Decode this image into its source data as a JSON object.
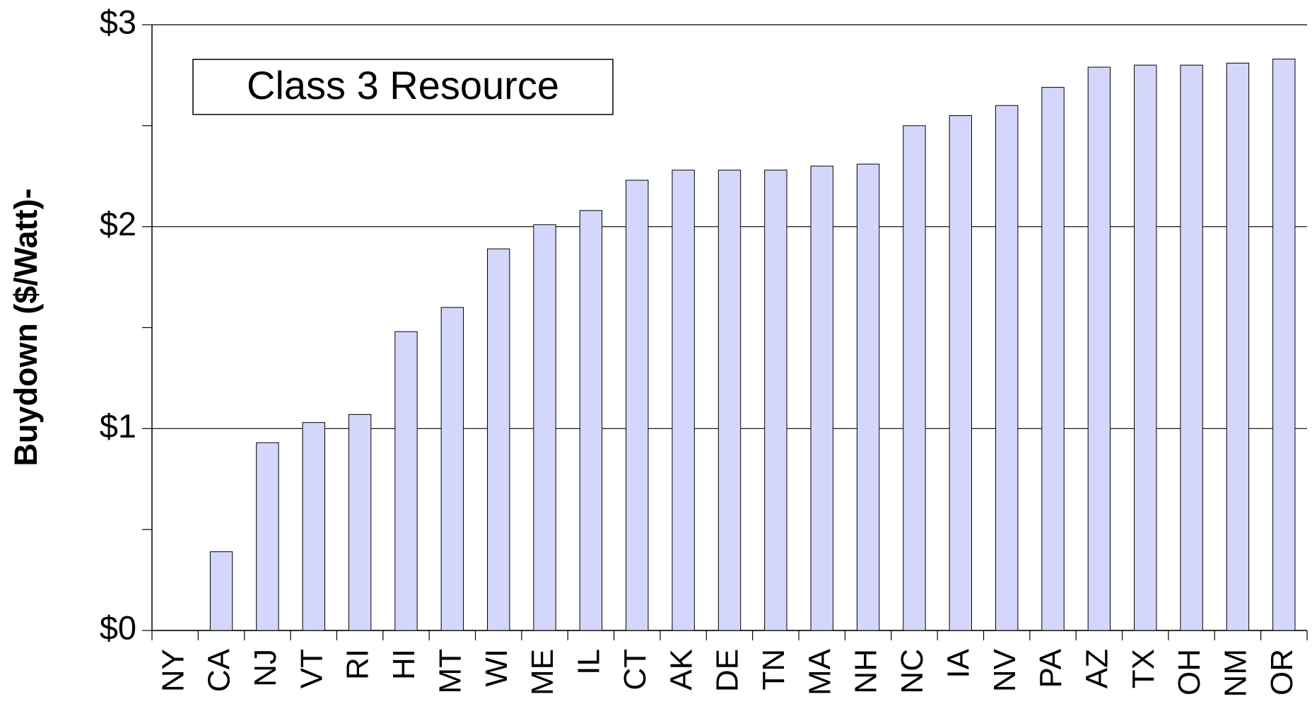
{
  "chart_data": {
    "type": "bar",
    "annotation": "Class 3 Resource",
    "y_label": "Buydown ($/Watt)-",
    "categories": [
      "NY",
      "CA",
      "NJ",
      "VT",
      "RI",
      "HI",
      "MT",
      "WI",
      "ME",
      "IL",
      "CT",
      "AK",
      "DE",
      "TN",
      "MA",
      "NH",
      "NC",
      "IA",
      "NV",
      "PA",
      "AZ",
      "TX",
      "OH",
      "NM",
      "OR"
    ],
    "values": [
      0,
      0.39,
      0.93,
      1.03,
      1.07,
      1.48,
      1.6,
      1.89,
      2.01,
      2.08,
      2.23,
      2.28,
      2.28,
      2.28,
      2.3,
      2.31,
      2.5,
      2.55,
      2.6,
      2.69,
      2.79,
      2.8,
      2.8,
      2.81,
      2.83
    ],
    "color": "#d4d6fb",
    "ylim": [
      0,
      3
    ],
    "yticks": [
      {
        "value": 0,
        "label": "$0"
      },
      {
        "value": 1,
        "label": "$1"
      },
      {
        "value": 2,
        "label": "$2"
      },
      {
        "value": 3,
        "label": "$3"
      }
    ],
    "yminor": [
      0.5,
      1.5,
      2.5
    ],
    "grid": true
  }
}
